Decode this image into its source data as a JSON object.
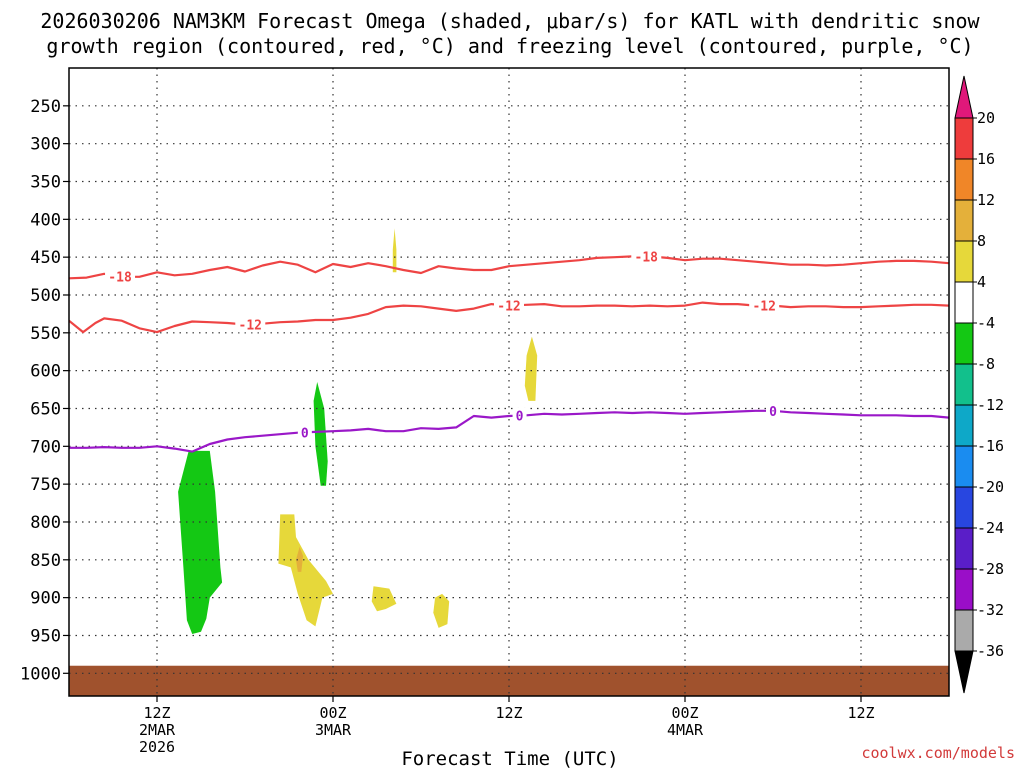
{
  "chart_data": {
    "type": "time-height",
    "title_line1": "2026030206 NAM3KM Forecast Omega (shaded, μbar/s) for KATL with dendritic snow",
    "title_line2": "growth region (contoured, red, °C) and freezing level (contoured, purple, °C)",
    "xlabel": "Forecast Time (UTC)",
    "credit": "coolwx.com/models",
    "x_range_hours": [
      6,
      56
    ],
    "y_range_hpa": [
      200,
      1030
    ],
    "y_ticks": [
      250,
      300,
      350,
      400,
      450,
      500,
      550,
      600,
      650,
      700,
      750,
      800,
      850,
      900,
      950,
      1000
    ],
    "x_ticks": [
      {
        "hour": 11,
        "label": "12Z",
        "sub1": "2MAR",
        "sub2": "2026"
      },
      {
        "hour": 21,
        "label": "00Z",
        "sub1": "3MAR",
        "sub2": ""
      },
      {
        "hour": 31,
        "label": "12Z",
        "sub1": "",
        "sub2": ""
      },
      {
        "hour": 41,
        "label": "00Z",
        "sub1": "4MAR",
        "sub2": ""
      },
      {
        "hour": 51,
        "label": "12Z",
        "sub1": "",
        "sub2": ""
      }
    ],
    "colorbar": {
      "tick_labels": [
        "20",
        "16",
        "12",
        "8",
        "4",
        "-4",
        "-8",
        "-12",
        "-16",
        "-20",
        "-24",
        "-28",
        "-32",
        "-36"
      ],
      "bins": [
        {
          "lo": 16,
          "hi": 20,
          "color": "#ee3c3c"
        },
        {
          "lo": 12,
          "hi": 16,
          "color": "#f08628"
        },
        {
          "lo": 8,
          "hi": 12,
          "color": "#e4b03a"
        },
        {
          "lo": 4,
          "hi": 8,
          "color": "#e6d83a"
        },
        {
          "lo": -4,
          "hi": 4,
          "color": "#ffffff"
        },
        {
          "lo": -8,
          "hi": -4,
          "color": "#14c814"
        },
        {
          "lo": -12,
          "hi": -8,
          "color": "#12c08c"
        },
        {
          "lo": -16,
          "hi": -12,
          "color": "#0ea8c8"
        },
        {
          "lo": -20,
          "hi": -16,
          "color": "#1a8cf0"
        },
        {
          "lo": -24,
          "hi": -20,
          "color": "#2846e0"
        },
        {
          "lo": -28,
          "hi": -24,
          "color": "#5a1ec8"
        },
        {
          "lo": -32,
          "hi": -28,
          "color": "#9a0ec8"
        },
        {
          "lo": -36,
          "hi": -32,
          "color": "#aaaaaa"
        }
      ],
      "over_color": "#e0187a",
      "under_color": "#000000"
    },
    "surface": {
      "top_hpa": 990,
      "color": "#a0522d"
    },
    "contours": [
      {
        "name": "minus18-isotherm",
        "label": "-18",
        "color": "#ee4444",
        "label_hours": [
          8.9,
          38.8
        ],
        "points": [
          [
            6,
            478
          ],
          [
            7,
            477
          ],
          [
            8,
            472
          ],
          [
            9,
            476
          ],
          [
            10,
            476
          ],
          [
            11,
            470
          ],
          [
            12,
            474
          ],
          [
            13,
            472
          ],
          [
            14,
            467
          ],
          [
            15,
            463
          ],
          [
            16,
            469
          ],
          [
            17,
            461
          ],
          [
            18,
            456
          ],
          [
            19,
            460
          ],
          [
            20,
            470
          ],
          [
            21,
            459
          ],
          [
            22,
            463
          ],
          [
            23,
            458
          ],
          [
            24,
            462
          ],
          [
            25,
            467
          ],
          [
            26,
            471
          ],
          [
            27,
            462
          ],
          [
            28,
            465
          ],
          [
            29,
            467
          ],
          [
            30,
            467
          ],
          [
            31,
            462
          ],
          [
            32,
            460
          ],
          [
            33,
            458
          ],
          [
            34,
            456
          ],
          [
            35,
            454
          ],
          [
            36,
            451
          ],
          [
            37,
            450
          ],
          [
            38,
            449
          ],
          [
            39,
            449
          ],
          [
            40,
            451
          ],
          [
            41,
            454
          ],
          [
            42,
            452
          ],
          [
            43,
            452
          ],
          [
            44,
            454
          ],
          [
            45,
            456
          ],
          [
            46,
            458
          ],
          [
            47,
            460
          ],
          [
            48,
            460
          ],
          [
            49,
            461
          ],
          [
            50,
            460
          ],
          [
            51,
            458
          ],
          [
            52,
            456
          ],
          [
            53,
            455
          ],
          [
            54,
            455
          ],
          [
            55,
            456
          ],
          [
            56,
            458
          ]
        ]
      },
      {
        "name": "minus12-isotherm",
        "label": "-12",
        "color": "#ee4444",
        "label_hours": [
          16.3,
          31.0,
          45.5
        ],
        "points": [
          [
            6,
            534
          ],
          [
            6.8,
            549
          ],
          [
            7.5,
            537
          ],
          [
            8,
            531
          ],
          [
            9,
            534
          ],
          [
            10,
            544
          ],
          [
            11,
            549
          ],
          [
            12,
            541
          ],
          [
            13,
            535
          ],
          [
            14,
            536
          ],
          [
            15,
            537
          ],
          [
            16,
            539
          ],
          [
            17,
            538
          ],
          [
            18,
            536
          ],
          [
            19,
            535
          ],
          [
            20,
            533
          ],
          [
            21,
            533
          ],
          [
            22,
            530
          ],
          [
            23,
            525
          ],
          [
            24,
            516
          ],
          [
            25,
            514
          ],
          [
            26,
            515
          ],
          [
            27,
            518
          ],
          [
            28,
            521
          ],
          [
            29,
            518
          ],
          [
            30,
            512
          ],
          [
            31,
            514
          ],
          [
            32,
            513
          ],
          [
            33,
            512
          ],
          [
            34,
            515
          ],
          [
            35,
            515
          ],
          [
            36,
            514
          ],
          [
            37,
            514
          ],
          [
            38,
            515
          ],
          [
            39,
            514
          ],
          [
            40,
            515
          ],
          [
            41,
            514
          ],
          [
            42,
            510
          ],
          [
            43,
            512
          ],
          [
            44,
            512
          ],
          [
            45,
            514
          ],
          [
            46,
            514
          ],
          [
            47,
            516
          ],
          [
            48,
            515
          ],
          [
            49,
            515
          ],
          [
            50,
            516
          ],
          [
            51,
            516
          ],
          [
            52,
            515
          ],
          [
            53,
            514
          ],
          [
            54,
            513
          ],
          [
            55,
            513
          ],
          [
            56,
            514
          ]
        ]
      },
      {
        "name": "freezing-level-0c",
        "label": "0",
        "color": "#9a18c8",
        "label_hours": [
          19.4,
          31.6,
          46.0
        ],
        "points": [
          [
            6,
            702
          ],
          [
            7,
            702
          ],
          [
            8,
            701
          ],
          [
            9,
            702
          ],
          [
            10,
            702
          ],
          [
            11,
            700
          ],
          [
            12,
            703
          ],
          [
            13,
            707
          ],
          [
            14,
            697
          ],
          [
            15,
            691
          ],
          [
            16,
            688
          ],
          [
            17,
            686
          ],
          [
            18,
            684
          ],
          [
            19,
            682
          ],
          [
            20,
            681
          ],
          [
            21,
            680
          ],
          [
            22,
            679
          ],
          [
            23,
            677
          ],
          [
            24,
            680
          ],
          [
            25,
            680
          ],
          [
            26,
            676
          ],
          [
            27,
            677
          ],
          [
            28,
            675
          ],
          [
            29,
            660
          ],
          [
            30,
            662
          ],
          [
            31,
            660
          ],
          [
            32,
            659
          ],
          [
            33,
            657
          ],
          [
            34,
            658
          ],
          [
            35,
            657
          ],
          [
            36,
            656
          ],
          [
            37,
            655
          ],
          [
            38,
            656
          ],
          [
            39,
            655
          ],
          [
            40,
            656
          ],
          [
            41,
            657
          ],
          [
            42,
            656
          ],
          [
            43,
            655
          ],
          [
            44,
            654
          ],
          [
            45,
            653
          ],
          [
            46,
            653
          ],
          [
            47,
            655
          ],
          [
            48,
            656
          ],
          [
            49,
            657
          ],
          [
            50,
            658
          ],
          [
            51,
            659
          ],
          [
            52,
            659
          ],
          [
            53,
            659
          ],
          [
            54,
            660
          ],
          [
            55,
            660
          ],
          [
            56,
            662
          ]
        ]
      }
    ],
    "omega_regions": [
      {
        "name": "omega-green-large",
        "value": -6,
        "color": "#14c814",
        "points": [
          [
            12.8,
            706
          ],
          [
            14.0,
            706
          ],
          [
            14.3,
            760
          ],
          [
            14.6,
            860
          ],
          [
            14.7,
            880
          ],
          [
            14.0,
            900
          ],
          [
            13.8,
            928
          ],
          [
            13.5,
            945
          ],
          [
            13.0,
            948
          ],
          [
            12.7,
            930
          ],
          [
            12.5,
            860
          ],
          [
            12.2,
            760
          ]
        ]
      },
      {
        "name": "omega-green-small",
        "value": -6,
        "color": "#14c814",
        "points": [
          [
            20.1,
            615
          ],
          [
            20.5,
            650
          ],
          [
            20.7,
            720
          ],
          [
            20.6,
            752
          ],
          [
            20.3,
            752
          ],
          [
            20.0,
            700
          ],
          [
            19.9,
            640
          ]
        ]
      },
      {
        "name": "omega-yellow-upper",
        "value": 5,
        "color": "#e6d83a",
        "points": [
          [
            24.5,
            412
          ],
          [
            24.6,
            440
          ],
          [
            24.6,
            470
          ],
          [
            24.4,
            470
          ],
          [
            24.4,
            440
          ]
        ]
      },
      {
        "name": "omega-yellow-mid",
        "value": 5,
        "color": "#e6d83a",
        "points": [
          [
            32.3,
            555
          ],
          [
            32.6,
            580
          ],
          [
            32.5,
            640
          ],
          [
            32.1,
            640
          ],
          [
            31.9,
            620
          ],
          [
            32.0,
            580
          ]
        ]
      },
      {
        "name": "omega-yellow-lower",
        "value": 5,
        "color": "#e6d83a",
        "points": [
          [
            18.0,
            790
          ],
          [
            18.8,
            790
          ],
          [
            18.9,
            820
          ],
          [
            19.6,
            850
          ],
          [
            20.6,
            878
          ],
          [
            21.0,
            895
          ],
          [
            20.4,
            900
          ],
          [
            20.0,
            938
          ],
          [
            19.5,
            930
          ],
          [
            19.0,
            895
          ],
          [
            18.6,
            860
          ],
          [
            17.9,
            855
          ]
        ]
      },
      {
        "name": "omega-yellow-blob-a",
        "value": 5,
        "color": "#e6d83a",
        "points": [
          [
            23.3,
            885
          ],
          [
            24.2,
            888
          ],
          [
            24.6,
            908
          ],
          [
            24.0,
            915
          ],
          [
            23.5,
            918
          ],
          [
            23.2,
            905
          ]
        ]
      },
      {
        "name": "omega-yellow-blob-b",
        "value": 5,
        "color": "#e6d83a",
        "points": [
          [
            27.2,
            895
          ],
          [
            27.6,
            905
          ],
          [
            27.5,
            935
          ],
          [
            27.0,
            940
          ],
          [
            26.7,
            920
          ],
          [
            26.8,
            900
          ]
        ]
      },
      {
        "name": "omega-orange-core",
        "value": 9,
        "color": "#e4b03a",
        "points": [
          [
            19.1,
            833
          ],
          [
            19.3,
            845
          ],
          [
            19.2,
            866
          ],
          [
            19.0,
            866
          ],
          [
            18.9,
            850
          ]
        ]
      }
    ]
  }
}
